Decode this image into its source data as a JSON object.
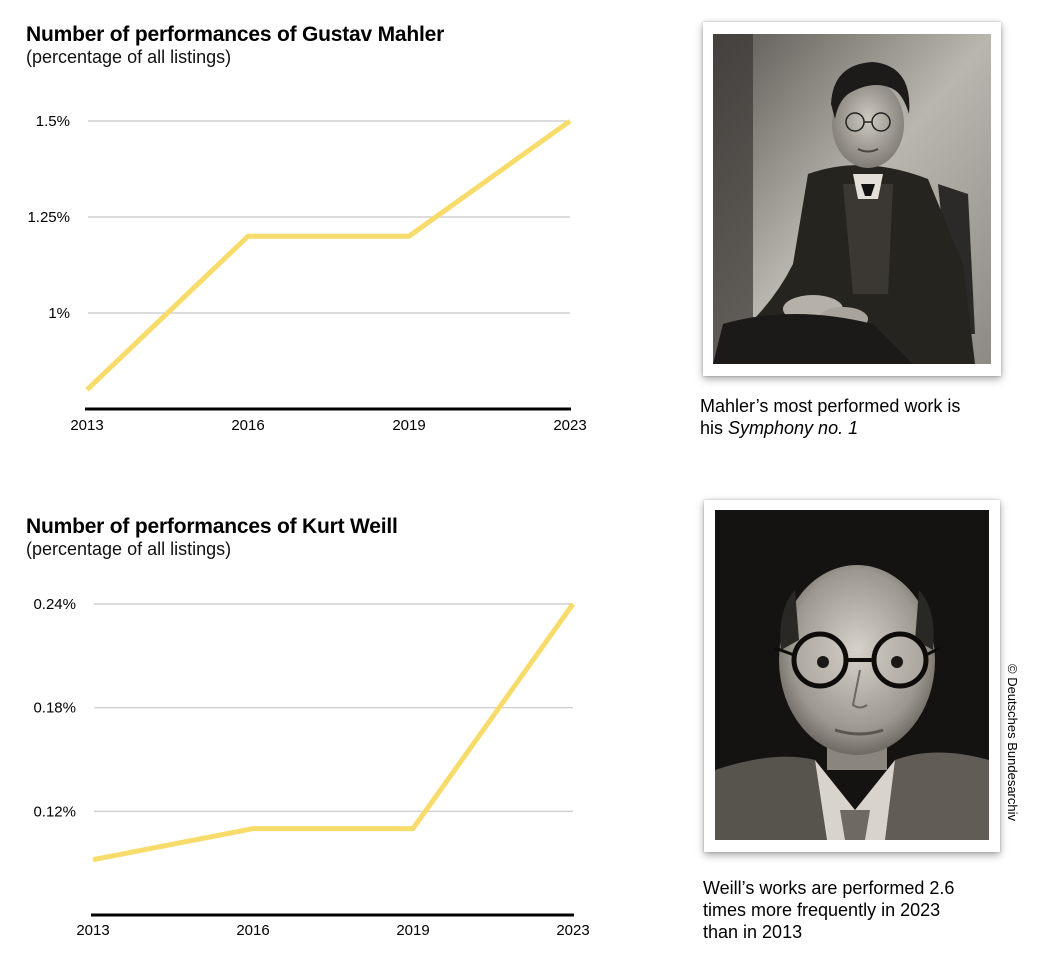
{
  "chart_data": [
    {
      "type": "line",
      "title": "Number of performances of Gustav Mahler",
      "subtitle": "(percentage of all listings)",
      "x": [
        "2013",
        "2016",
        "2019",
        "2023"
      ],
      "series": [
        {
          "values": [
            0.8,
            1.2,
            1.2,
            1.5
          ],
          "color": "#f7dc6b"
        }
      ],
      "y_ticks": [
        1.0,
        1.25,
        1.5
      ],
      "y_tick_labels": [
        "1%",
        "1.25%",
        "1.5%"
      ],
      "ylim": [
        0.75,
        1.5
      ],
      "grid": true
    },
    {
      "type": "line",
      "title": "Number of performances of Kurt Weill",
      "subtitle": "(percentage of all listings)",
      "x": [
        "2013",
        "2016",
        "2019",
        "2023"
      ],
      "series": [
        {
          "values": [
            0.092,
            0.11,
            0.11,
            0.24
          ],
          "color": "#f7dc6b"
        }
      ],
      "y_ticks": [
        0.12,
        0.18,
        0.24
      ],
      "y_tick_labels": [
        "0.12%",
        "0.18%",
        "0.24%"
      ],
      "ylim": [
        0.06,
        0.24
      ],
      "grid": true
    }
  ],
  "photos": {
    "mahler": {
      "caption_line1": "Mahler’s most performed work is",
      "caption_line2_prefix": "his ",
      "caption_line2_italic": "Symphony no. 1"
    },
    "weill": {
      "caption_line1": "Weill’s works are performed 2.6",
      "caption_line2": "times more frequently in 2023",
      "caption_line3": "than in 2013",
      "credit": "© Deutsches Bundesarchiv"
    }
  },
  "colors": {
    "line": "#f7dc6b",
    "grid": "#c8c8c8",
    "axis": "#000000"
  }
}
